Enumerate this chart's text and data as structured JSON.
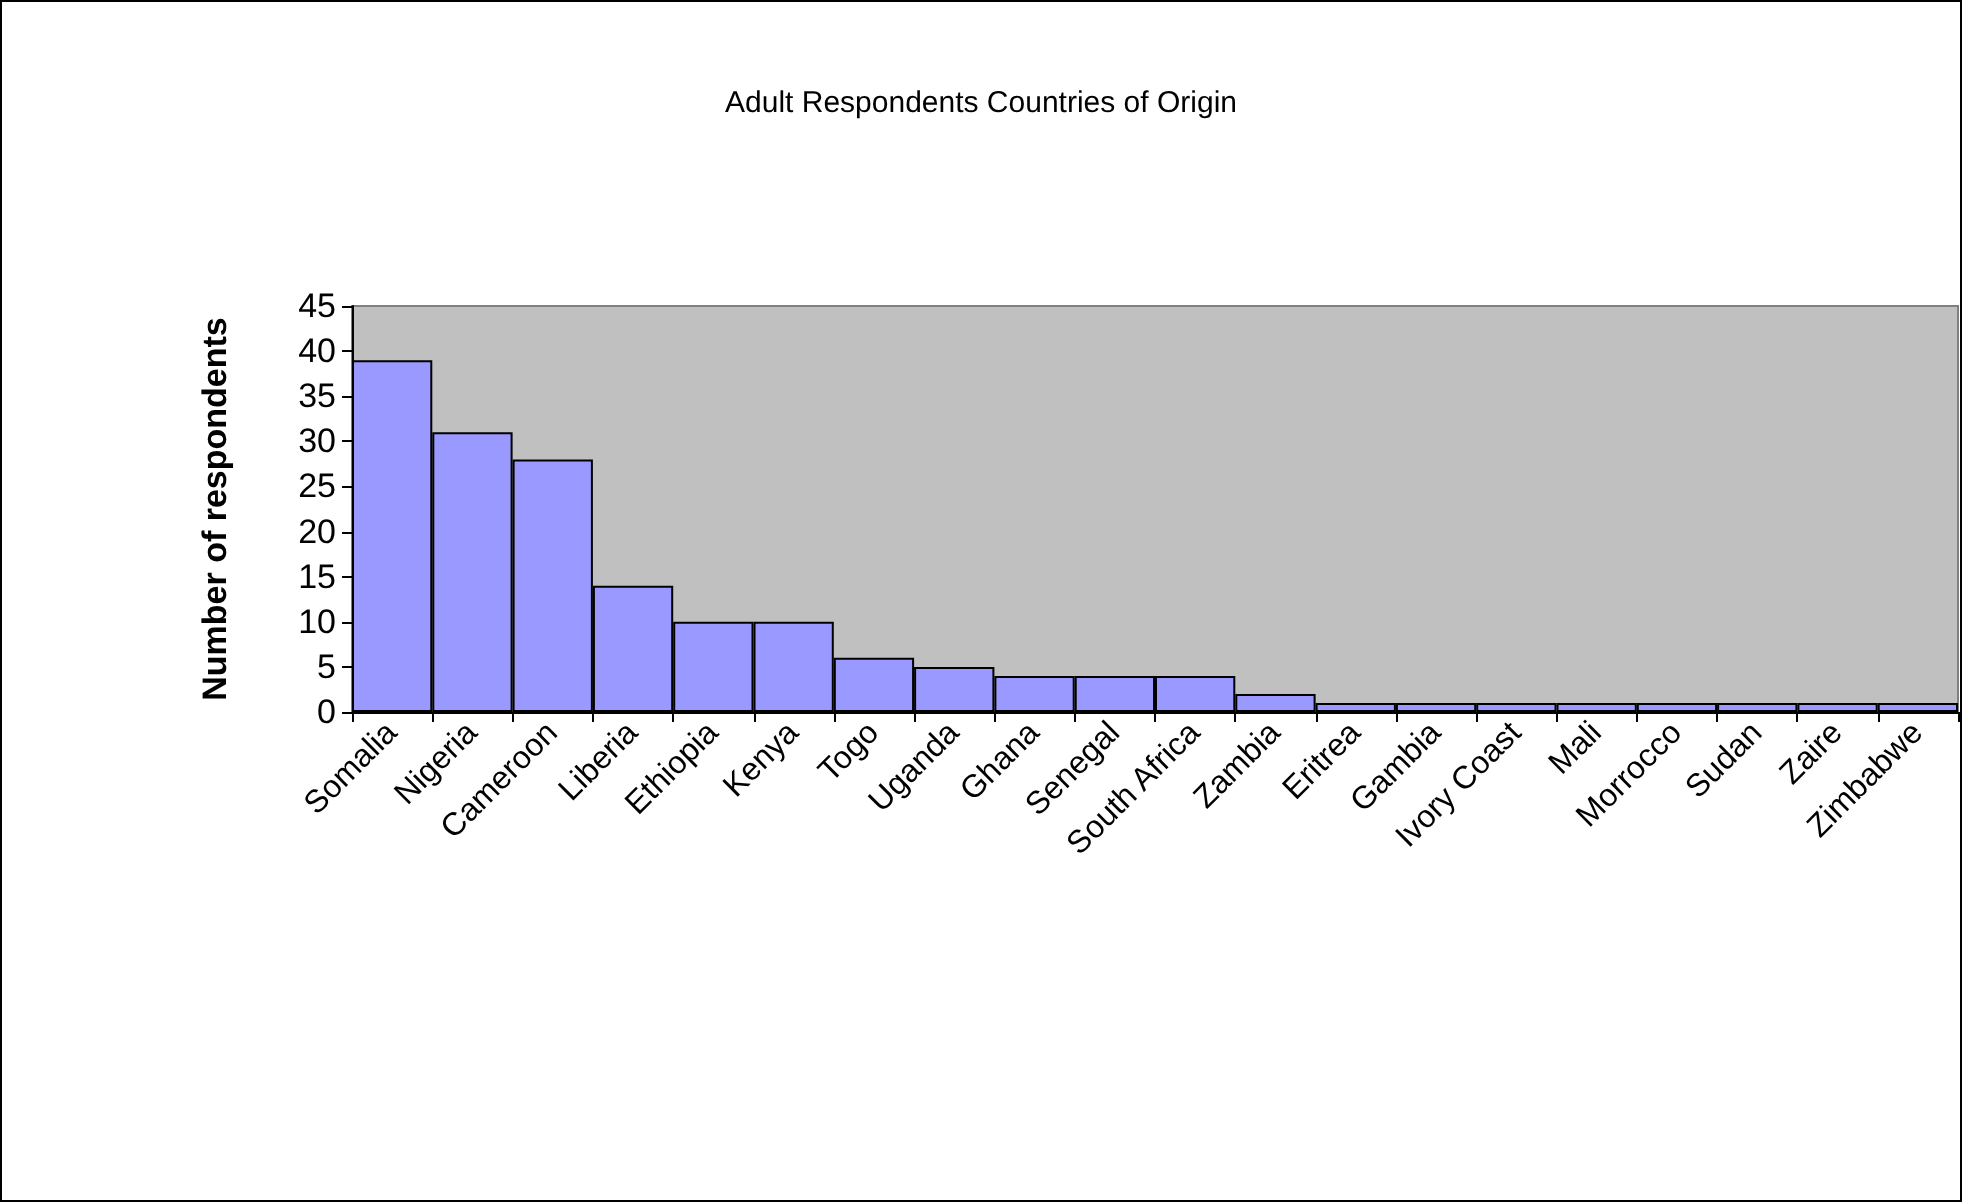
{
  "chart_data": {
    "type": "bar",
    "title": "Adult Respondents Countries of Origin",
    "ylabel": "Number of respondents",
    "categories": [
      "Somalia",
      "Nigeria",
      "Cameroon",
      "Liberia",
      "Ethiopia",
      "Kenya",
      "Togo",
      "Uganda",
      "Ghana",
      "Senegal",
      "South Africa",
      "Zambia",
      "Eritrea",
      "Gambia",
      "Ivory Coast",
      "Mali",
      "Morrocco",
      "Sudan",
      "Zaire",
      "Zimbabwe"
    ],
    "values": [
      39,
      31,
      28,
      14,
      10,
      10,
      6,
      5,
      4,
      4,
      4,
      2,
      1,
      1,
      1,
      1,
      1,
      1,
      1,
      1
    ],
    "color": "#9999ff",
    "ylim": [
      0,
      45
    ],
    "yticks": [
      0,
      5,
      10,
      15,
      20,
      25,
      30,
      35,
      40,
      45
    ],
    "grid": false
  }
}
